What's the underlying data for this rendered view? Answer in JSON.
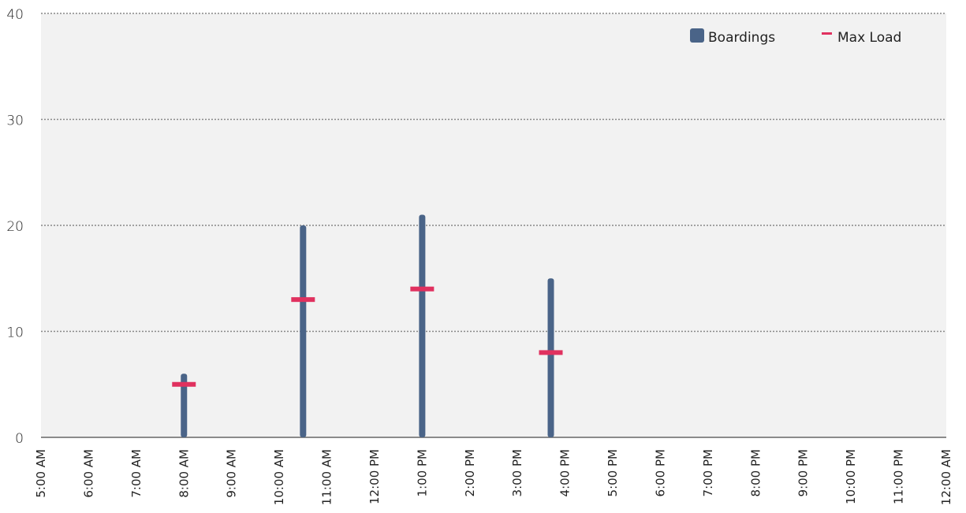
{
  "colors": {
    "plot_background": "#f2f2f2",
    "boardings": "#4a6488",
    "max_load": "#e0315f",
    "grid": "#888888",
    "axis": "#666666"
  },
  "legend": {
    "items": [
      {
        "label": "Boardings",
        "icon": "square-swatch-icon"
      },
      {
        "label": "Max Load",
        "icon": "dash-marker-icon"
      }
    ]
  },
  "chart_data": {
    "type": "bar",
    "categories": [
      "5:00 AM",
      "6:00 AM",
      "7:00 AM",
      "8:00 AM",
      "9:00 AM",
      "10:00 AM",
      "11:00 AM",
      "12:00 PM",
      "1:00 PM",
      "2:00 PM",
      "3:00 PM",
      "4:00 PM",
      "5:00 PM",
      "6:00 PM",
      "7:00 PM",
      "8:00 PM",
      "9:00 PM",
      "10:00 PM",
      "11:00 PM",
      "12:00 AM"
    ],
    "x_unit": "hours after 5:00 AM",
    "series": [
      {
        "name": "Boardings",
        "kind": "bar",
        "points": [
          {
            "x": 3.0,
            "y": 6
          },
          {
            "x": 5.5,
            "y": 20
          },
          {
            "x": 8.0,
            "y": 21
          },
          {
            "x": 10.7,
            "y": 15
          }
        ]
      },
      {
        "name": "Max Load",
        "kind": "marker",
        "points": [
          {
            "x": 3.0,
            "y": 5
          },
          {
            "x": 5.5,
            "y": 13
          },
          {
            "x": 8.0,
            "y": 14
          },
          {
            "x": 10.7,
            "y": 8
          }
        ]
      }
    ],
    "yticks": [
      0,
      10,
      20,
      30,
      40
    ],
    "ylim": [
      0,
      40
    ],
    "xlim": [
      0,
      19
    ],
    "grid": true,
    "legend_position": "top-right",
    "title": "",
    "xlabel": "",
    "ylabel": ""
  }
}
